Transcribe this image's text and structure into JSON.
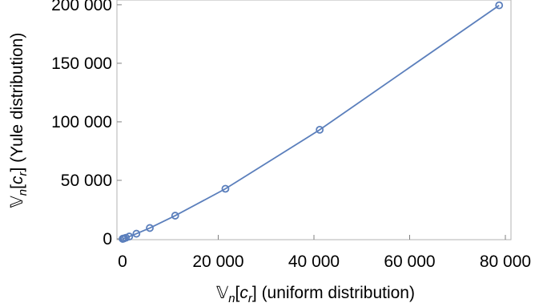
{
  "chart_data": {
    "type": "scatter",
    "title": "",
    "xlabel": {
      "prefix": "𝕍",
      "sub": "n",
      "bracket_open": "[",
      "var": "c",
      "var_sub": "r",
      "bracket_close": "]",
      "suffix": " (uniform distribution)"
    },
    "ylabel": {
      "prefix": "𝕍",
      "sub": "n",
      "bracket_open": "[",
      "var": "c",
      "var_sub": "r",
      "bracket_close": "]",
      "suffix": " (Yule distribution)"
    },
    "xlim": [
      0,
      79500
    ],
    "ylim": [
      0,
      202000
    ],
    "x_ticks": [
      0,
      20000,
      40000,
      60000,
      80000
    ],
    "x_tick_labels": [
      "0",
      "20 000",
      "40 000",
      "60 000",
      "80 000"
    ],
    "y_ticks": [
      0,
      50000,
      100000,
      150000,
      200000
    ],
    "y_tick_labels": [
      "0",
      "50 000",
      "100 000",
      "150 000",
      "200 000"
    ],
    "grid": false,
    "series": [
      {
        "color": "#5b7fbc",
        "marker": "open-circle",
        "line": true,
        "points": [
          {
            "x": 20,
            "y": 30
          },
          {
            "x": 60,
            "y": 80
          },
          {
            "x": 150,
            "y": 200
          },
          {
            "x": 350,
            "y": 450
          },
          {
            "x": 700,
            "y": 950
          },
          {
            "x": 1400,
            "y": 2000
          },
          {
            "x": 2900,
            "y": 4400
          },
          {
            "x": 5700,
            "y": 9300
          },
          {
            "x": 11000,
            "y": 19800
          },
          {
            "x": 21500,
            "y": 42800
          },
          {
            "x": 41200,
            "y": 93200
          },
          {
            "x": 78700,
            "y": 199500
          }
        ]
      }
    ]
  }
}
